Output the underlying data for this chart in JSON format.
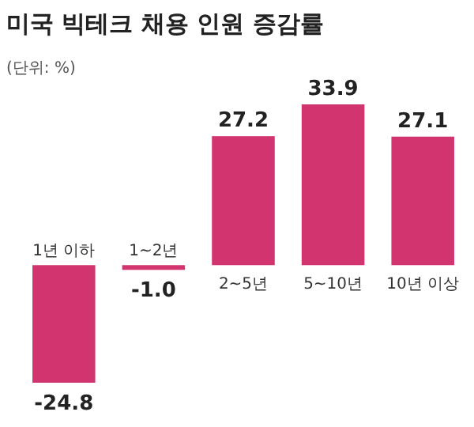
{
  "chart_data": {
    "type": "bar",
    "title": "미국 빅테크 채용 인원 증감률",
    "subtitle": "(단위: %)",
    "categories": [
      "1년 이하",
      "1~2년",
      "2~5년",
      "5~10년",
      "10년 이상"
    ],
    "values": [
      -24.8,
      -1.0,
      27.2,
      33.9,
      27.1
    ],
    "value_labels": [
      "-24.8",
      "-1.0",
      "27.2",
      "33.9",
      "27.1"
    ],
    "color": "#d1346f"
  }
}
